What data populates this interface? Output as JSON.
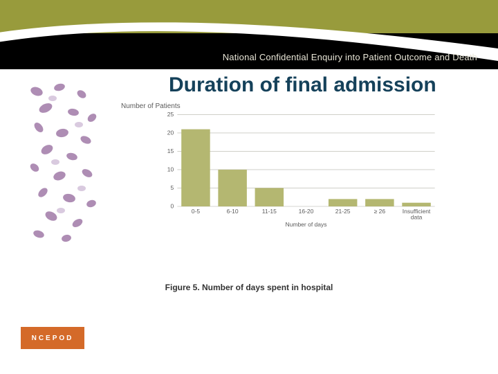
{
  "header": {
    "olive_color": "#989b3c",
    "black_color": "#000000",
    "swoosh_color": "#ffffff",
    "subtitle": "National Confidential Enquiry into Patient Outcome and Death",
    "subtitle_color": "#e9e6d7"
  },
  "title": {
    "text": "Duration of final admission",
    "color": "#15415a",
    "fontsize": 30,
    "fontweight": "bold"
  },
  "cells_image": {
    "tint": "#a07aa8",
    "background": "#ffffff"
  },
  "chart": {
    "type": "bar",
    "y_axis_title": "Number of Patients",
    "x_axis_title": "Number of days",
    "categories": [
      "0-5",
      "6-10",
      "11-15",
      "16-20",
      "21-25",
      "≥ 26",
      "Insufficient\ndata"
    ],
    "values": [
      21,
      10,
      5,
      0,
      2,
      2,
      1
    ],
    "bar_color": "#b4b771",
    "grid_color": "#c8c8c0",
    "background_color": "#ffffff",
    "ylim": [
      0,
      25
    ],
    "ytick_step": 5,
    "y_ticks": [
      0,
      5,
      10,
      15,
      20,
      25
    ],
    "bar_width": 0.78,
    "label_fontsize": 10,
    "label_color": "#5a5a5a"
  },
  "caption": {
    "text": "Figure 5. Number of days spent in hospital",
    "fontsize": 12,
    "fontweight": "bold",
    "color": "#333333"
  },
  "logo": {
    "text": "NCEPOD",
    "background": "#d46a29",
    "color": "#ffffff"
  }
}
